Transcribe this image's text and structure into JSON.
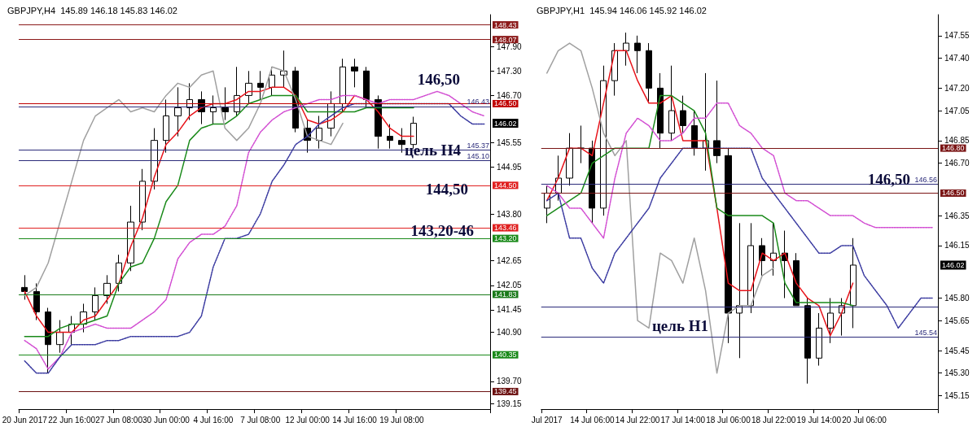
{
  "chart_data": [
    {
      "type": "candlestick",
      "title": "GBPJPY,H4  145.89 146.18 145.83 146.02",
      "categories": [
        "20 Jun 2017",
        null,
        null,
        null,
        "22 Jun 16:00",
        null,
        null,
        null,
        "27 Jun 08:00",
        null,
        null,
        null,
        "30 Jun 00:00",
        null,
        null,
        null,
        "4 Jul 16:00",
        null,
        null,
        null,
        "7 Jul 08:00",
        null,
        null,
        null,
        "12 Jul 00:00",
        null,
        null,
        null,
        "14 Jul 16:00",
        null,
        null,
        null,
        "19 Jul 08:00",
        null,
        null,
        null,
        null,
        null,
        null,
        null
      ],
      "series": [
        {
          "color": "#000000",
          "ohlc": [
            [
              142.0,
              142.3,
              141.7,
              141.9
            ],
            [
              141.9,
              142.1,
              141.2,
              141.4
            ],
            [
              141.4,
              141.5,
              139.9,
              140.6
            ],
            [
              140.6,
              141.2,
              140.4,
              140.9
            ],
            [
              140.9,
              141.3,
              140.6,
              141.1
            ],
            [
              141.1,
              141.6,
              140.9,
              141.4
            ],
            [
              141.4,
              142.0,
              141.2,
              141.8
            ],
            [
              141.8,
              142.3,
              141.6,
              142.1
            ],
            [
              142.1,
              142.8,
              141.9,
              142.6
            ],
            [
              142.6,
              144.0,
              142.4,
              143.6
            ],
            [
              143.6,
              144.9,
              143.4,
              144.6
            ],
            [
              144.6,
              145.9,
              144.4,
              145.6
            ],
            [
              145.6,
              146.6,
              145.3,
              146.2
            ],
            [
              146.2,
              146.9,
              145.7,
              146.4
            ],
            [
              146.4,
              147.0,
              146.1,
              146.6
            ],
            [
              146.6,
              146.8,
              146.0,
              146.3
            ],
            [
              146.3,
              146.7,
              146.0,
              146.4
            ],
            [
              146.4,
              146.9,
              146.1,
              146.3
            ],
            [
              146.3,
              147.4,
              146.2,
              146.7
            ],
            [
              146.7,
              147.3,
              146.5,
              147.0
            ],
            [
              147.0,
              147.3,
              146.6,
              146.9
            ],
            [
              146.9,
              147.4,
              146.7,
              147.2
            ],
            [
              147.2,
              147.8,
              146.9,
              147.3
            ],
            [
              147.3,
              147.4,
              145.8,
              145.9
            ],
            [
              145.9,
              146.1,
              145.3,
              145.6
            ],
            [
              145.6,
              146.2,
              145.4,
              145.9
            ],
            [
              145.9,
              146.8,
              145.7,
              146.5
            ],
            [
              146.5,
              147.6,
              146.3,
              147.4
            ],
            [
              147.4,
              147.6,
              146.9,
              147.3
            ],
            [
              147.3,
              147.4,
              146.4,
              146.6
            ],
            [
              146.6,
              146.7,
              145.4,
              145.7
            ],
            [
              145.7,
              146.0,
              145.4,
              145.6
            ],
            [
              145.6,
              145.9,
              145.3,
              145.5
            ],
            [
              145.5,
              146.18,
              145.4,
              146.02
            ],
            null,
            null,
            null,
            null,
            null,
            null
          ],
          "value_labels": [
            null,
            null,
            null,
            null,
            null,
            null,
            null,
            null,
            null,
            null,
            null,
            null,
            null,
            null,
            null,
            null,
            null,
            null,
            null,
            null,
            null,
            null,
            null,
            null,
            null,
            null,
            null,
            null,
            null,
            null,
            null,
            null,
            null,
            "146.02",
            null,
            null,
            null,
            null,
            null,
            null
          ]
        },
        {
          "type": "line",
          "color": "#e8141b",
          "values": [
            141.9,
            141.3,
            140.9,
            140.9,
            140.9,
            141.2,
            141.3,
            141.7,
            142.1,
            143.0,
            143.7,
            144.7,
            145.5,
            145.8,
            146.2,
            146.4,
            146.5,
            146.5,
            146.6,
            146.8,
            146.8,
            146.9,
            146.9,
            146.7,
            146.1,
            146.0,
            146.1,
            146.3,
            146.7,
            146.6,
            146.3,
            145.9,
            145.7,
            145.7,
            null,
            null,
            null,
            null,
            null,
            null
          ]
        },
        {
          "type": "line",
          "color": "#1a8a1a",
          "values": [
            140.8,
            140.8,
            140.8,
            141.0,
            141.1,
            141.1,
            141.2,
            141.3,
            142.1,
            142.5,
            142.6,
            143.2,
            144.1,
            144.5,
            145.6,
            145.9,
            146.0,
            146.0,
            146.2,
            146.5,
            146.6,
            146.7,
            146.7,
            146.7,
            146.3,
            146.3,
            146.3,
            146.3,
            146.3,
            146.4,
            146.4,
            146.4,
            146.4,
            146.4,
            null,
            null,
            null,
            null,
            null,
            null
          ]
        },
        {
          "type": "line",
          "color": "#a0a0a0",
          "values": [
            141.8,
            142.0,
            142.6,
            143.6,
            144.6,
            145.6,
            146.2,
            146.4,
            146.6,
            146.3,
            146.4,
            146.3,
            146.7,
            147.0,
            146.9,
            147.2,
            147.3,
            145.9,
            145.6,
            145.9,
            146.5,
            147.4,
            147.3,
            146.6,
            145.7,
            145.6,
            145.5,
            146.02,
            null,
            null,
            null,
            null,
            null,
            null,
            null,
            null,
            null,
            null,
            null,
            null
          ]
        },
        {
          "type": "line",
          "color": "#d24dd2",
          "line_style": "dotted",
          "values": [
            140.7,
            140.5,
            140.0,
            140.3,
            140.9,
            141.0,
            141.1,
            141.0,
            141.0,
            141.0,
            141.2,
            141.4,
            141.7,
            142.7,
            143.1,
            143.3,
            143.3,
            143.5,
            144.0,
            145.3,
            145.8,
            146.1,
            146.3,
            146.4,
            146.5,
            146.6,
            146.6,
            146.7,
            146.7,
            146.6,
            146.5,
            146.6,
            146.6,
            146.6,
            146.7,
            146.8,
            146.7,
            146.5,
            146.3,
            146.2
          ]
        },
        {
          "type": "line",
          "color": "#3a3aa0",
          "line_style": "dotted",
          "values": [
            140.2,
            139.9,
            139.9,
            140.3,
            140.6,
            140.6,
            140.6,
            140.7,
            140.7,
            140.8,
            140.8,
            140.8,
            140.8,
            140.8,
            140.9,
            141.3,
            142.5,
            143.2,
            143.2,
            143.3,
            143.8,
            144.6,
            145.0,
            145.5,
            145.7,
            146.0,
            146.2,
            146.4,
            146.5,
            146.5,
            146.5,
            146.5,
            146.5,
            146.5,
            146.5,
            146.5,
            146.5,
            146.2,
            146.0,
            146.0
          ]
        }
      ],
      "ylim": [
        139.02,
        148.68
      ],
      "yticks": [
        139.15,
        {
          "value": 139.7,
          "label": "139.70"
        },
        {
          "value": 140.9,
          "label": "140.90"
        },
        141.45,
        142.05,
        142.65,
        {
          "value": 143.8,
          "label": "143.80"
        },
        144.95,
        145.55,
        {
          "value": 146.7,
          "label": "146.70"
        },
        {
          "value": 147.3,
          "label": "147.30"
        },
        {
          "value": 147.9,
          "label": "147.90"
        }
      ],
      "ref_lines": [
        {
          "axis": "y",
          "value": 148.43,
          "label": "148.43",
          "color": "#8b1a1a"
        },
        {
          "axis": "y",
          "value": 148.07,
          "label": "148.07",
          "color": "#8b1a1a"
        },
        {
          "axis": "y",
          "value": 146.5,
          "label": "146.50",
          "color": "#c00000"
        },
        {
          "axis": "y",
          "value": 144.5,
          "label": "144.50",
          "color": "#e02020"
        },
        {
          "axis": "y",
          "value": 143.46,
          "label": "143.46",
          "color": "#e02020"
        },
        {
          "axis": "y",
          "value": 143.2,
          "label": "143.20",
          "color": "#1a8a1a"
        },
        {
          "axis": "y",
          "value": 141.83,
          "label": "141.83",
          "color": "#1a7a1a"
        },
        {
          "axis": "y",
          "value": 140.35,
          "label": "140.35",
          "color": "#1a8a1a"
        },
        {
          "axis": "y",
          "value": 139.45,
          "label": "139.45",
          "color": "#6b1010"
        },
        {
          "axis": "y",
          "value": 146.43,
          "label": "146.43"
        },
        {
          "axis": "y",
          "value": 145.37,
          "label": "145.37"
        },
        {
          "axis": "y",
          "value": 145.1,
          "label": "145.10"
        }
      ],
      "annotations": [
        "146,50",
        "цель H4",
        "144,50",
        "143,20-46"
      ],
      "grid": false,
      "marker": "none"
    },
    {
      "type": "candlestick",
      "title": "GBPJPY,H1  145.94 146.06 145.92 146.02",
      "categories": [
        "Jul 2017",
        null,
        null,
        null,
        "14 Jul 06:00",
        null,
        null,
        null,
        "14 Jul 22:00",
        null,
        null,
        null,
        "17 Jul 14:00",
        null,
        null,
        null,
        "18 Jul 06:00",
        null,
        null,
        null,
        "18 Jul 22:00",
        null,
        null,
        null,
        "19 Jul 14:00",
        null,
        null,
        null,
        "20 Jul 06:00",
        null,
        null,
        null,
        null,
        null,
        null
      ],
      "series": [
        {
          "color": "#000000",
          "ohlc": [
            [
              146.4,
              146.55,
              146.3,
              146.5
            ],
            [
              146.5,
              146.75,
              146.45,
              146.6
            ],
            [
              146.6,
              146.9,
              146.55,
              146.8
            ],
            [
              146.8,
              146.95,
              146.7,
              146.8
            ],
            [
              146.8,
              146.85,
              146.3,
              146.4
            ],
            [
              146.4,
              147.35,
              146.35,
              147.25
            ],
            [
              147.25,
              147.5,
              147.15,
              147.45
            ],
            [
              147.45,
              147.57,
              147.35,
              147.5
            ],
            [
              147.5,
              147.55,
              147.3,
              147.45
            ],
            [
              147.45,
              147.5,
              147.1,
              147.2
            ],
            [
              147.2,
              147.3,
              146.8,
              146.9
            ],
            [
              146.9,
              147.35,
              146.85,
              147.05
            ],
            [
              147.05,
              147.15,
              146.9,
              146.95
            ],
            [
              146.95,
              147.05,
              146.75,
              146.8
            ],
            [
              146.8,
              147.3,
              146.65,
              146.85
            ],
            [
              146.85,
              147.25,
              146.7,
              146.75
            ],
            [
              146.75,
              146.8,
              145.5,
              145.7
            ],
            [
              145.7,
              146.3,
              145.4,
              145.75
            ],
            [
              145.75,
              146.3,
              145.7,
              146.15
            ],
            [
              146.15,
              146.2,
              145.95,
              146.05
            ],
            [
              146.05,
              146.3,
              145.95,
              146.1
            ],
            [
              146.1,
              146.25,
              145.8,
              146.05
            ],
            [
              146.05,
              146.1,
              145.75,
              145.75
            ],
            [
              145.75,
              145.8,
              145.23,
              145.4
            ],
            [
              145.4,
              145.7,
              145.35,
              145.6
            ],
            [
              145.6,
              145.8,
              145.5,
              145.7
            ],
            [
              145.7,
              145.8,
              145.55,
              145.75
            ],
            [
              145.75,
              146.2,
              145.6,
              146.02
            ],
            null,
            null,
            null,
            null,
            null,
            null,
            null
          ],
          "value_labels": [
            null,
            null,
            null,
            null,
            null,
            null,
            null,
            null,
            null,
            null,
            null,
            null,
            null,
            null,
            null,
            null,
            null,
            null,
            null,
            null,
            null,
            null,
            null,
            null,
            null,
            null,
            null,
            "146.02",
            null,
            null,
            null,
            null,
            null,
            null,
            null
          ]
        },
        {
          "type": "line",
          "color": "#e8141b",
          "values": [
            146.45,
            146.6,
            146.8,
            146.8,
            146.75,
            147.1,
            147.45,
            147.45,
            147.25,
            147.1,
            147.1,
            147.15,
            146.85,
            146.85,
            146.85,
            146.4,
            145.9,
            145.85,
            145.85,
            146.1,
            146.05,
            146.1,
            145.9,
            145.8,
            145.75,
            145.55,
            145.7,
            145.9,
            null,
            null,
            null,
            null,
            null,
            null,
            null
          ]
        },
        {
          "type": "line",
          "color": "#1a8a1a",
          "values": [
            146.35,
            146.4,
            146.45,
            146.5,
            146.7,
            146.75,
            146.8,
            146.8,
            146.8,
            146.8,
            147.15,
            147.15,
            147.1,
            147.05,
            146.9,
            146.4,
            146.35,
            146.35,
            146.35,
            146.35,
            146.3,
            145.9,
            145.77,
            145.77,
            145.77,
            145.77,
            145.77,
            145.75,
            null,
            null,
            null,
            null,
            null,
            null,
            null
          ]
        },
        {
          "type": "line",
          "color": "#a0a0a0",
          "values": [
            147.3,
            147.45,
            147.5,
            147.45,
            147.2,
            146.9,
            146.75,
            146.85,
            145.65,
            145.6,
            146.1,
            146.05,
            145.9,
            146.2,
            145.85,
            145.3,
            145.7,
            145.75,
            145.75,
            145.95,
            146.0,
            null,
            null,
            null,
            null,
            null,
            null,
            null,
            null,
            null,
            null,
            null,
            null,
            null,
            null
          ]
        },
        {
          "type": "line",
          "color": "#d24dd2",
          "line_style": "dotted",
          "values": [
            146.55,
            146.5,
            146.4,
            146.4,
            146.3,
            146.2,
            146.6,
            146.9,
            147.0,
            146.95,
            146.85,
            146.85,
            146.9,
            147.0,
            147.0,
            147.1,
            147.1,
            146.95,
            146.9,
            146.8,
            146.75,
            146.5,
            146.45,
            146.45,
            146.4,
            146.35,
            146.35,
            146.35,
            146.3,
            146.27,
            146.27,
            146.27,
            146.27,
            146.27,
            146.27
          ]
        },
        {
          "type": "line",
          "color": "#3a3aa0",
          "line_style": "dotted",
          "values": [
            146.45,
            146.5,
            146.2,
            146.2,
            146.0,
            145.9,
            146.1,
            146.2,
            146.3,
            146.4,
            146.6,
            146.7,
            146.8,
            146.8,
            146.8,
            146.8,
            146.8,
            146.8,
            146.8,
            146.6,
            146.5,
            146.4,
            146.3,
            146.2,
            146.1,
            146.1,
            146.15,
            146.15,
            145.95,
            145.85,
            145.75,
            145.6,
            145.7,
            145.8,
            145.8
          ]
        }
      ],
      "ylim": [
        145.06,
        147.69
      ],
      "yticks": [
        145.15,
        {
          "value": 145.3,
          "label": "145.30"
        },
        145.45,
        145.65,
        {
          "value": 145.8,
          "label": "145.80"
        },
        146.15,
        146.35,
        {
          "value": 146.7,
          "label": "146.70"
        },
        146.85,
        147.05,
        {
          "value": 147.2,
          "label": "147.20"
        },
        {
          "value": 147.4,
          "label": "147.40"
        },
        147.55
      ],
      "ref_lines": [
        {
          "axis": "y",
          "value": 146.8,
          "label": "146.80",
          "color": "#7a1515"
        },
        {
          "axis": "y",
          "value": 146.5,
          "label": "146.50",
          "color": "#7a1515"
        },
        {
          "axis": "y",
          "value": 146.56,
          "label": "146.56"
        },
        {
          "axis": "y",
          "value": 145.74
        },
        {
          "axis": "y",
          "value": 145.54,
          "label": "145.54"
        }
      ],
      "annotations": [
        "146,50",
        "цель H1"
      ],
      "grid": false,
      "marker": "none"
    }
  ]
}
